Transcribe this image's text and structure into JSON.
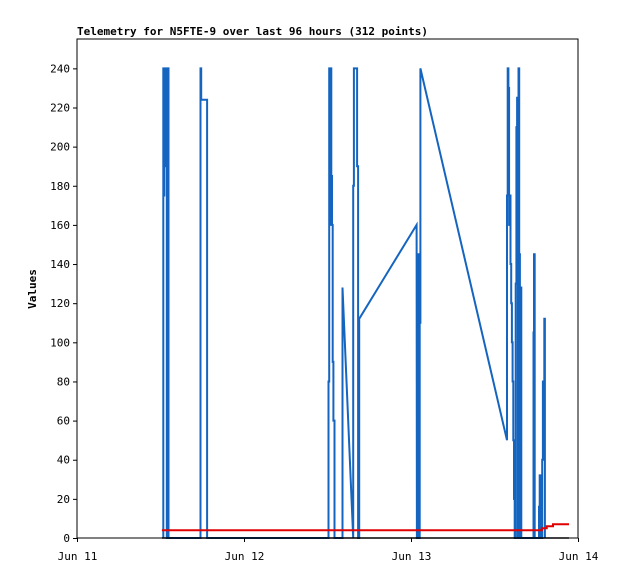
{
  "chart_data": {
    "type": "line",
    "title": "Telemetry for N5FTE-9 over last 96 hours (312 points)",
    "xlabel": "",
    "ylabel": "Values",
    "x_tick_labels": [
      "Jun 11",
      "Jun 12",
      "Jun 13",
      "Jun 14"
    ],
    "x_ticks_hours": [
      0,
      24,
      48,
      72
    ],
    "xlim": [
      0,
      72
    ],
    "ylim": [
      0,
      255
    ],
    "y_ticks": [
      0,
      20,
      40,
      60,
      80,
      100,
      120,
      140,
      160,
      180,
      200,
      220,
      240
    ],
    "grid": false,
    "legend": "none",
    "colors": {
      "series1": "#1565c0",
      "series2": "#e00000",
      "series3": "#000000"
    },
    "series": [
      {
        "points": [
          [
            12.4,
            0
          ],
          [
            12.4,
            240
          ],
          [
            12.48,
            240
          ],
          [
            12.48,
            175
          ],
          [
            12.55,
            175
          ],
          [
            12.55,
            240
          ],
          [
            12.65,
            240
          ],
          [
            12.65,
            210
          ],
          [
            12.72,
            210
          ],
          [
            12.72,
            240
          ],
          [
            12.82,
            240
          ],
          [
            12.82,
            190
          ],
          [
            12.9,
            190
          ],
          [
            12.9,
            0
          ],
          [
            12.97,
            0
          ],
          [
            12.97,
            120
          ],
          [
            13.05,
            120
          ],
          [
            13.05,
            240
          ],
          [
            13.15,
            240
          ],
          [
            13.15,
            0
          ],
          [
            17.75,
            0
          ],
          [
            17.75,
            240
          ],
          [
            17.85,
            240
          ],
          [
            17.85,
            224
          ],
          [
            18.7,
            224
          ],
          [
            18.7,
            0
          ],
          [
            36.15,
            0
          ],
          [
            36.15,
            80
          ],
          [
            36.25,
            80
          ],
          [
            36.25,
            240
          ],
          [
            36.35,
            240
          ],
          [
            36.35,
            160
          ],
          [
            36.45,
            160
          ],
          [
            36.45,
            240
          ],
          [
            36.55,
            240
          ],
          [
            36.55,
            185
          ],
          [
            36.65,
            185
          ],
          [
            36.65,
            160
          ],
          [
            36.75,
            160
          ],
          [
            36.75,
            90
          ],
          [
            36.85,
            90
          ],
          [
            36.85,
            60
          ],
          [
            37.0,
            60
          ],
          [
            37.0,
            0
          ],
          [
            38.15,
            0
          ],
          [
            38.15,
            128
          ],
          [
            39.7,
            0
          ],
          [
            39.7,
            180
          ],
          [
            39.8,
            180
          ],
          [
            39.8,
            240
          ],
          [
            40.25,
            240
          ],
          [
            40.25,
            190
          ],
          [
            40.4,
            190
          ],
          [
            40.4,
            0
          ],
          [
            40.55,
            0
          ],
          [
            40.55,
            112
          ],
          [
            48.8,
            160
          ],
          [
            48.85,
            0
          ],
          [
            48.9,
            0
          ],
          [
            48.9,
            80
          ],
          [
            48.98,
            80
          ],
          [
            48.98,
            145
          ],
          [
            49.08,
            145
          ],
          [
            49.08,
            125
          ],
          [
            49.18,
            125
          ],
          [
            49.18,
            0
          ],
          [
            49.25,
            0
          ],
          [
            49.25,
            110
          ],
          [
            49.35,
            110
          ],
          [
            49.35,
            240
          ],
          [
            61.8,
            50
          ],
          [
            61.8,
            175
          ],
          [
            61.9,
            175
          ],
          [
            61.9,
            240
          ],
          [
            62.0,
            240
          ],
          [
            62.0,
            230
          ],
          [
            62.1,
            230
          ],
          [
            62.1,
            160
          ],
          [
            62.2,
            160
          ],
          [
            62.2,
            175
          ],
          [
            62.3,
            175
          ],
          [
            62.3,
            140
          ],
          [
            62.4,
            140
          ],
          [
            62.4,
            120
          ],
          [
            62.5,
            120
          ],
          [
            62.5,
            100
          ],
          [
            62.6,
            100
          ],
          [
            62.6,
            80
          ],
          [
            62.7,
            80
          ],
          [
            62.7,
            50
          ],
          [
            62.8,
            50
          ],
          [
            62.8,
            20
          ],
          [
            62.9,
            20
          ],
          [
            62.9,
            0
          ],
          [
            63.05,
            0
          ],
          [
            63.05,
            130
          ],
          [
            63.15,
            130
          ],
          [
            63.15,
            210
          ],
          [
            63.25,
            210
          ],
          [
            63.25,
            225
          ],
          [
            63.35,
            225
          ],
          [
            63.35,
            0
          ],
          [
            63.45,
            0
          ],
          [
            63.45,
            240
          ],
          [
            63.55,
            240
          ],
          [
            63.55,
            145
          ],
          [
            63.65,
            145
          ],
          [
            63.65,
            0
          ],
          [
            63.75,
            0
          ],
          [
            63.75,
            128
          ],
          [
            63.85,
            128
          ],
          [
            63.85,
            0
          ],
          [
            65.6,
            0
          ],
          [
            65.6,
            105
          ],
          [
            65.68,
            105
          ],
          [
            65.68,
            145
          ],
          [
            65.78,
            145
          ],
          [
            65.78,
            0
          ],
          [
            66.4,
            0
          ],
          [
            66.4,
            16
          ],
          [
            66.5,
            16
          ],
          [
            66.5,
            32
          ],
          [
            66.6,
            32
          ],
          [
            66.6,
            0
          ],
          [
            66.85,
            0
          ],
          [
            66.85,
            40
          ],
          [
            66.95,
            40
          ],
          [
            66.95,
            80
          ],
          [
            67.05,
            80
          ],
          [
            67.05,
            56
          ],
          [
            67.15,
            56
          ],
          [
            67.15,
            112
          ],
          [
            67.25,
            112
          ],
          [
            67.25,
            0
          ]
        ]
      },
      {
        "points": [
          [
            12.2,
            4
          ],
          [
            66.8,
            4
          ],
          [
            66.8,
            5
          ],
          [
            67.5,
            5
          ],
          [
            67.5,
            6
          ],
          [
            68.4,
            6
          ],
          [
            68.4,
            7
          ],
          [
            70.7,
            7
          ]
        ]
      },
      {
        "points": [
          [
            12.2,
            0
          ],
          [
            70.7,
            0
          ]
        ]
      }
    ]
  }
}
